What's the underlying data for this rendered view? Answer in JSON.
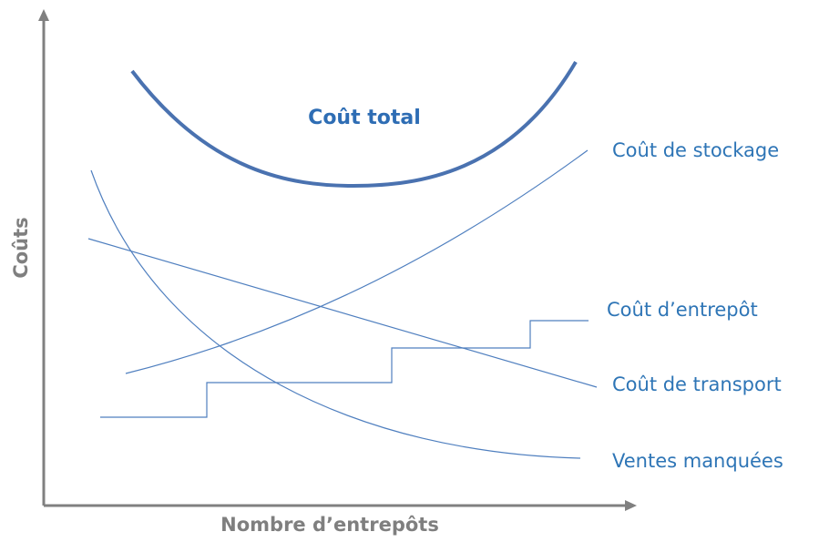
{
  "labels": {
    "total_cost": "Coût total",
    "storage_cost": "Coût de stockage",
    "warehouse_cost": "Coût d’entrepôt",
    "transport_cost": "Coût de transport",
    "lost_sales": "Ventes manquées"
  },
  "axes": {
    "y_title": "Coûts",
    "x_title": "Nombre d’entrepôts"
  }
}
